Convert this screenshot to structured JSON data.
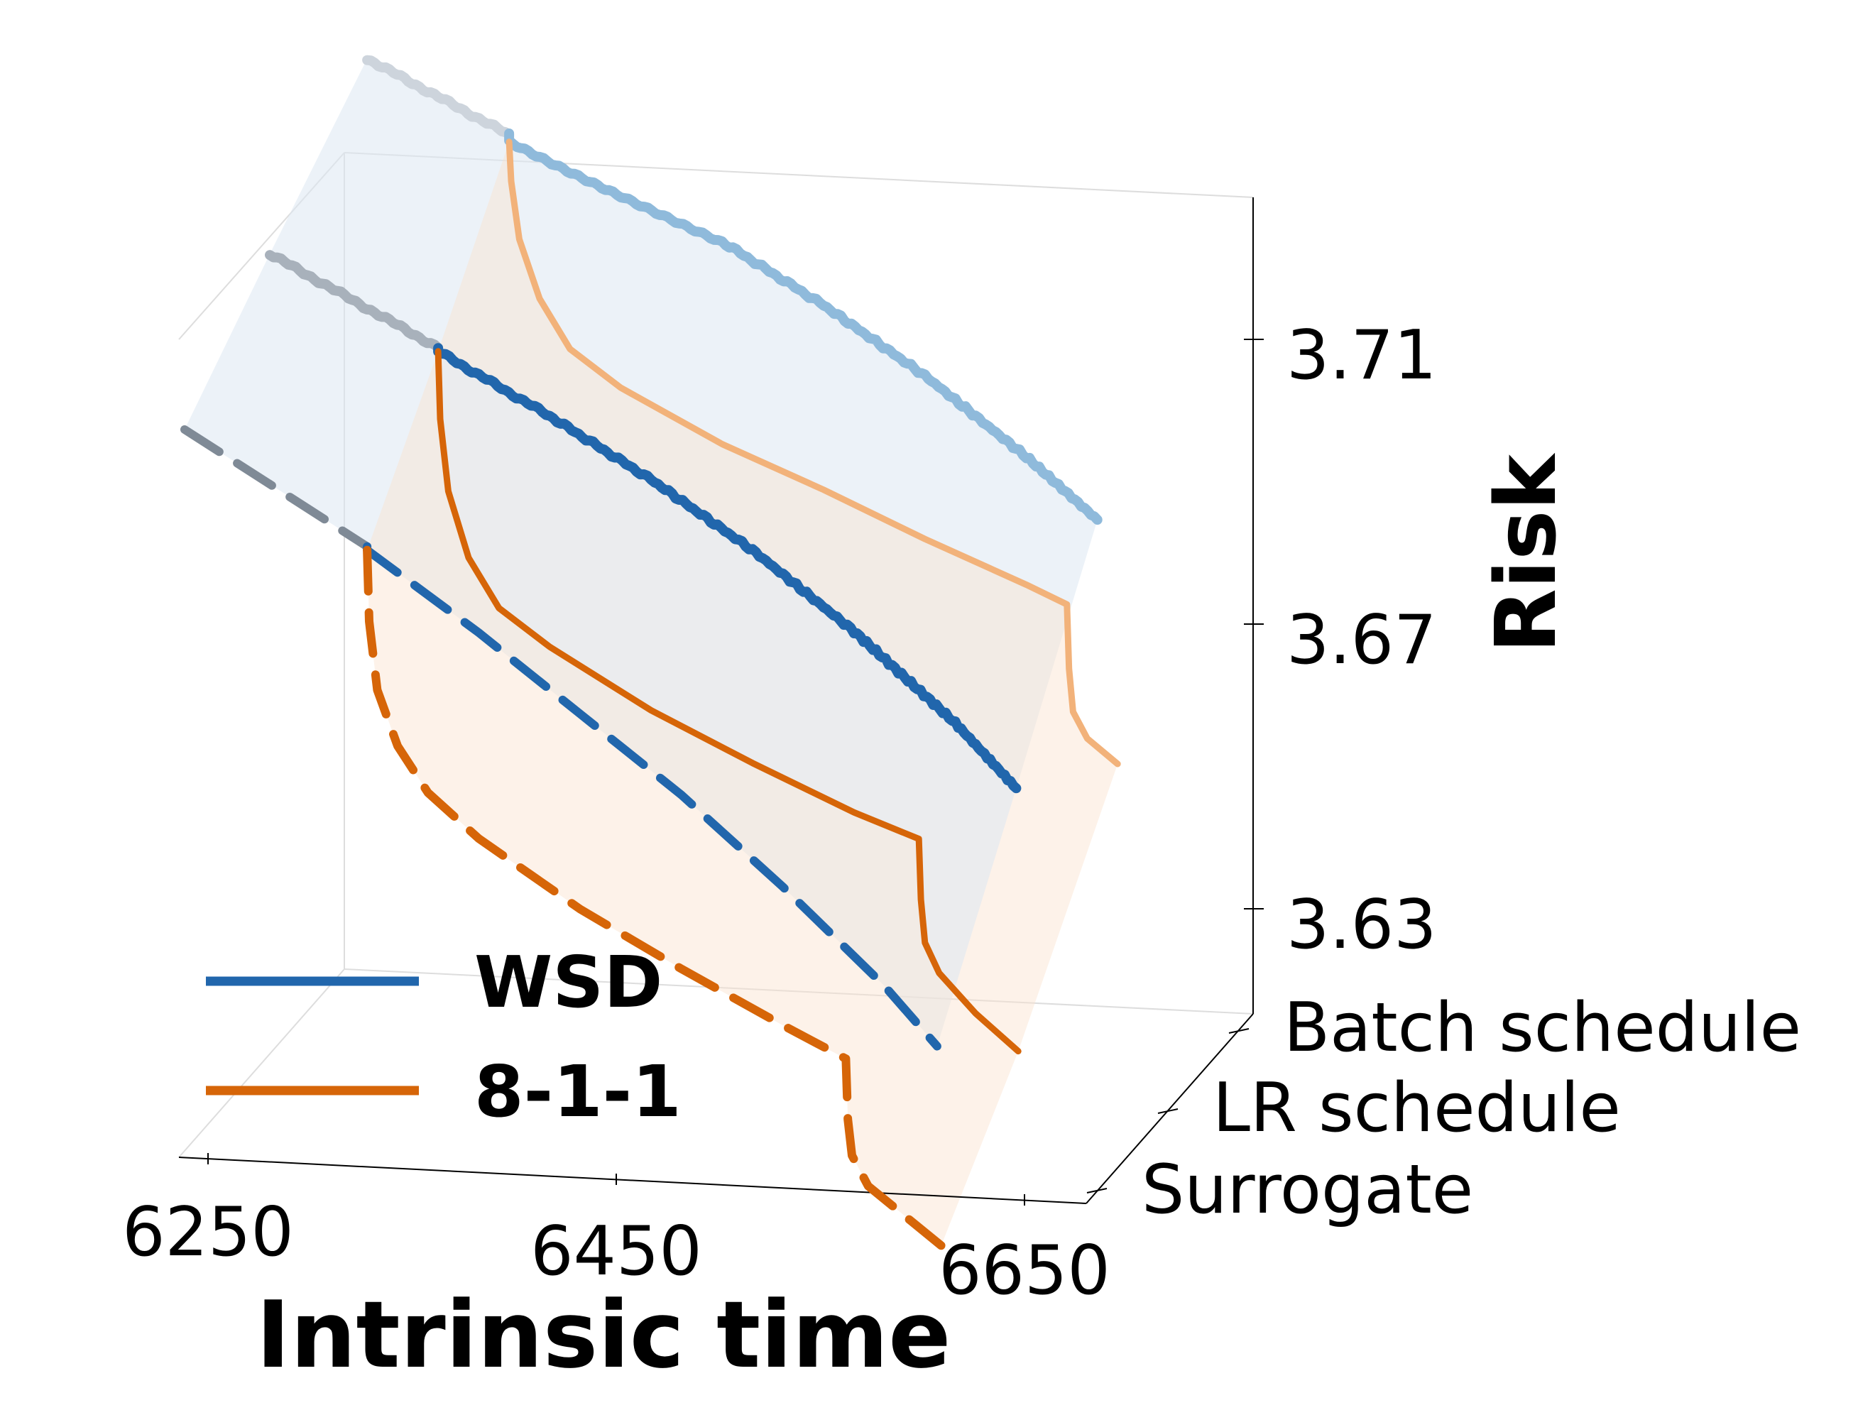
{
  "chart_data": {
    "type": "line",
    "projection": "3d",
    "xlabel": "Intrinsic time",
    "zlabel": "Risk",
    "x_ticks": [
      6250,
      6450,
      6650
    ],
    "z_ticks": [
      "3.71",
      "3.67",
      "3.63"
    ],
    "depth_ticks": [
      "Batch schedule",
      "LR schedule",
      "Surrogate"
    ],
    "xlim": [
      6232,
      6664
    ],
    "zlim": [
      3.61,
      3.73
    ],
    "legend": {
      "placement": "lower-left",
      "entries": [
        {
          "label": "WSD",
          "color": "#2166ac"
        },
        {
          "label": "8-1-1",
          "color": "#d66508"
        }
      ]
    },
    "series": [
      {
        "name": "WSD",
        "plane": "Batch schedule",
        "style": "noisy",
        "color": "#8fbadb",
        "warmup_color": "#cdd4dc",
        "switch_x": 6365,
        "x": [
          6295,
          6365,
          6365,
          6420,
          6470,
          6520,
          6570,
          6620,
          6655
        ],
        "y": [
          3.7225,
          3.7145,
          3.7135,
          3.708,
          3.7035,
          3.6965,
          3.6885,
          3.679,
          3.6715
        ]
      },
      {
        "name": "8-1-1",
        "plane": "Batch schedule",
        "style": "solid",
        "color": "#f2b27a",
        "switch_x": 6365,
        "x": [
          6365,
          6366,
          6370,
          6380,
          6395,
          6420,
          6470,
          6520,
          6570,
          6620,
          6640,
          6641,
          6643,
          6650,
          6665
        ],
        "y": [
          3.7135,
          3.708,
          3.7,
          3.692,
          3.6855,
          3.681,
          3.675,
          3.6705,
          3.6655,
          3.661,
          3.659,
          3.65,
          3.644,
          3.6405,
          3.6375
        ]
      },
      {
        "name": "WSD",
        "plane": "LR schedule",
        "style": "noisy",
        "color": "#2166ac",
        "warmup_color": "#a8b1bb",
        "switch_x": 6365,
        "x": [
          6282,
          6365,
          6365,
          6420,
          6470,
          6520,
          6570,
          6620,
          6650
        ],
        "y": [
          3.7055,
          3.6955,
          3.695,
          3.688,
          3.681,
          3.673,
          3.6635,
          3.6525,
          3.6445
        ]
      },
      {
        "name": "8-1-1",
        "plane": "LR schedule",
        "style": "solid",
        "color": "#d66508",
        "switch_x": 6365,
        "x": [
          6365,
          6366,
          6370,
          6380,
          6395,
          6420,
          6470,
          6520,
          6570,
          6602,
          6603,
          6605,
          6612,
          6630,
          6651
        ],
        "y": [
          3.695,
          3.6855,
          3.6755,
          3.6665,
          3.66,
          3.6555,
          3.6485,
          3.643,
          3.638,
          3.6355,
          3.627,
          3.621,
          3.617,
          3.612,
          3.6075
        ]
      },
      {
        "name": "WSD",
        "plane": "Surrogate",
        "style": "dashed",
        "color": "#2166ac",
        "warmup_color": "#7f8a96",
        "switch_x": 6365,
        "x": [
          6275,
          6365,
          6365,
          6420,
          6470,
          6520,
          6570,
          6620,
          6646
        ],
        "y": [
          3.6915,
          3.6785,
          3.678,
          3.6685,
          3.659,
          3.6495,
          3.6385,
          3.6265,
          3.619
        ]
      },
      {
        "name": "8-1-1",
        "plane": "Surrogate",
        "style": "dashed",
        "color": "#d66508",
        "switch_x": 6365,
        "x": [
          6365,
          6366,
          6370,
          6380,
          6395,
          6420,
          6470,
          6520,
          6570,
          6601,
          6602,
          6604,
          6612,
          6630,
          6648
        ],
        "y": [
          3.678,
          3.668,
          3.6585,
          3.651,
          3.645,
          3.6395,
          3.6315,
          3.625,
          3.619,
          3.6155,
          3.607,
          3.602,
          3.598,
          3.5945,
          3.591
        ]
      }
    ]
  }
}
